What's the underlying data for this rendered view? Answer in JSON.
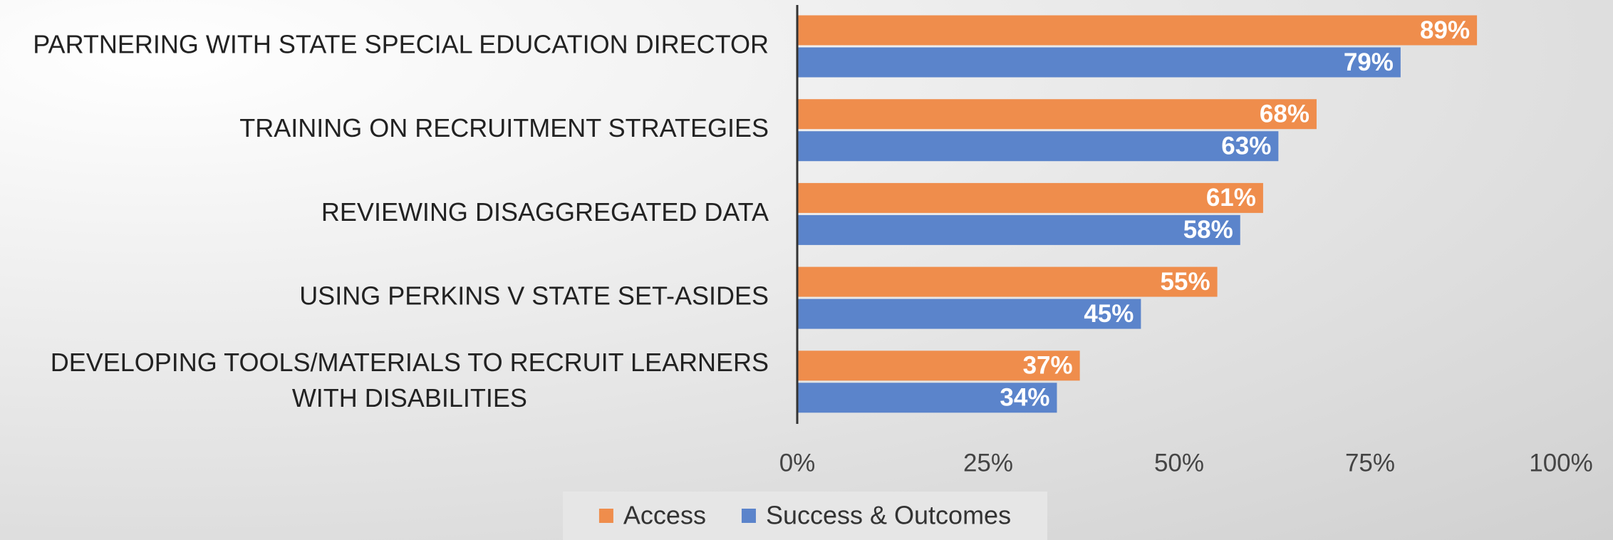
{
  "chart_data": {
    "type": "hbar",
    "categories": [
      "PARTNERING WITH STATE SPECIAL EDUCATION DIRECTOR",
      "TRAINING ON RECRUITMENT STRATEGIES",
      "REVIEWING DISAGGREGATED DATA",
      "USING PERKINS V STATE SET-ASIDES",
      "DEVELOPING TOOLS/MATERIALS TO RECRUIT LEARNERS WITH DISABILITIES"
    ],
    "series": [
      {
        "name": "Access",
        "color": "#ef8d4c",
        "values": [
          89,
          68,
          61,
          55,
          37
        ],
        "value_labels": [
          "89%",
          "68%",
          "61%",
          "55%",
          "37%"
        ]
      },
      {
        "name": "Success & Outcomes",
        "color": "#5b84cb",
        "values": [
          79,
          63,
          58,
          45,
          34
        ],
        "value_labels": [
          "79%",
          "63%",
          "58%",
          "45%",
          "34%"
        ]
      }
    ],
    "xlim": [
      0,
      100
    ],
    "xticks": [
      {
        "value": 0,
        "label": "0%"
      },
      {
        "value": 25,
        "label": "25%"
      },
      {
        "value": 50,
        "label": "50%"
      },
      {
        "value": 75,
        "label": "75%"
      },
      {
        "value": 100,
        "label": "100%"
      }
    ],
    "legend": "bottom"
  }
}
